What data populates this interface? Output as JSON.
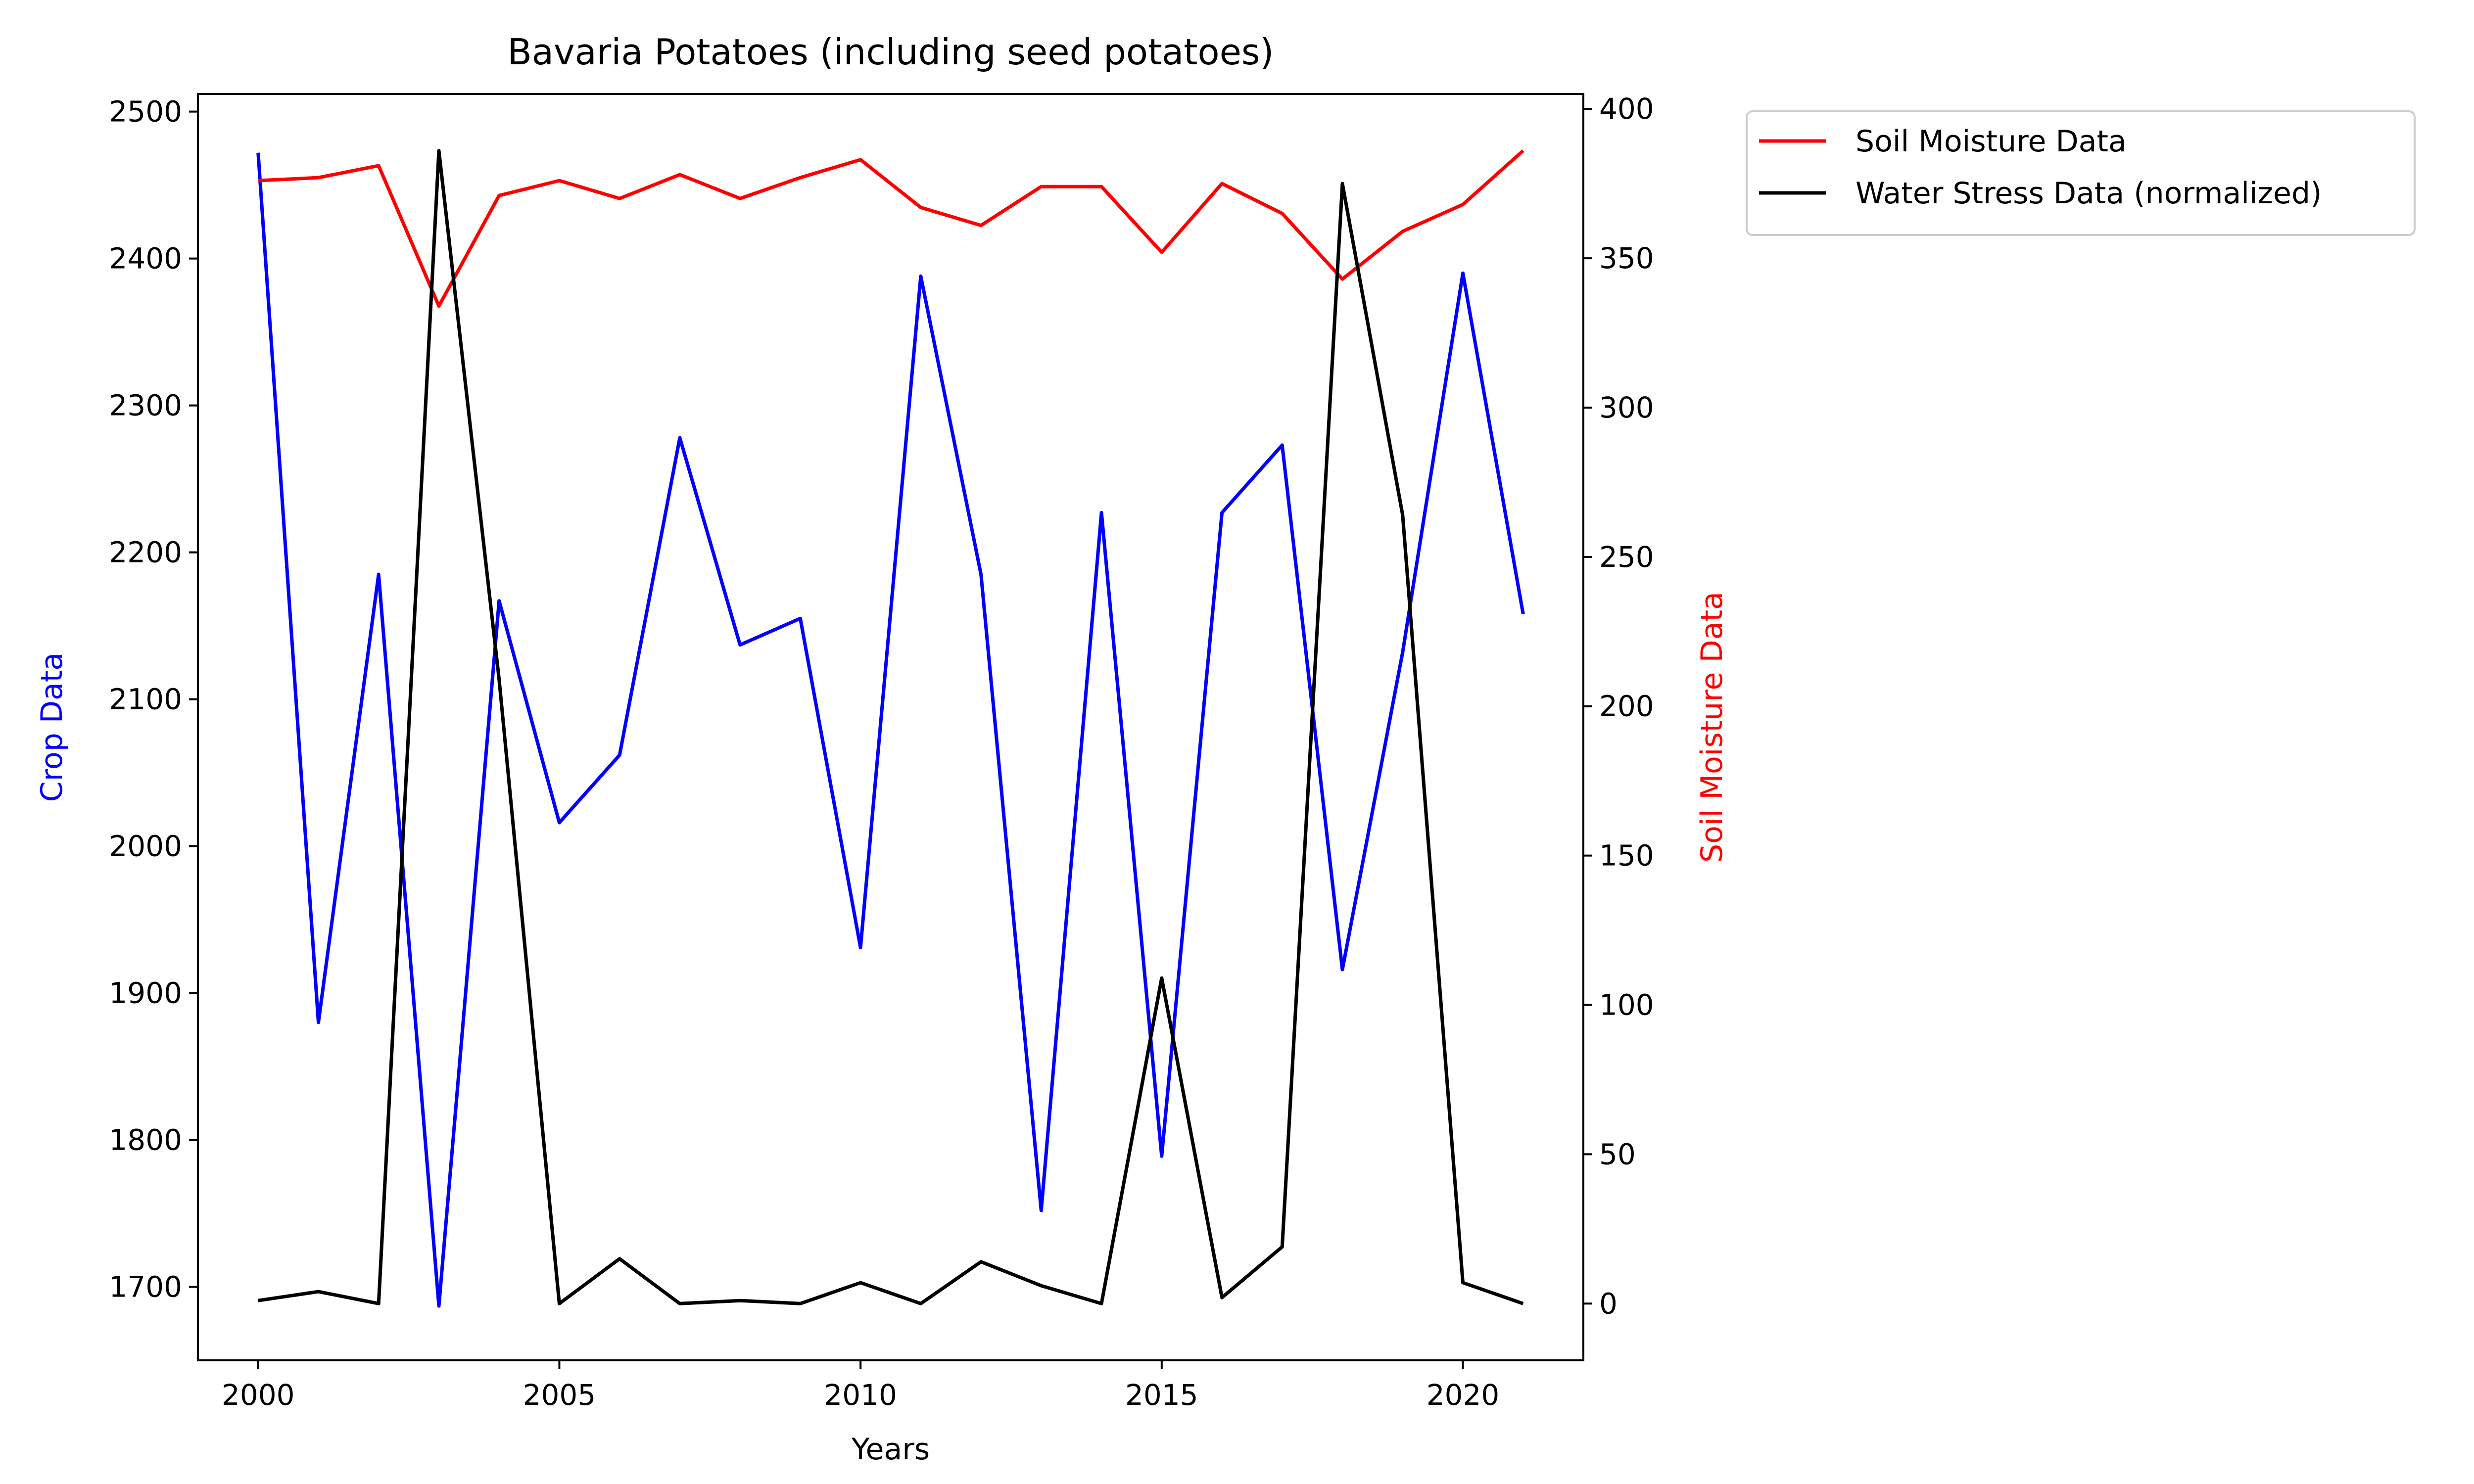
{
  "chart_data": {
    "type": "line",
    "title": "Bavaria Potatoes (including seed potatoes)",
    "xlabel": "Years",
    "ylabel_left": "Crop Data",
    "ylabel_right": "Soil Moisture Data",
    "xlim": [
      1999,
      2022
    ],
    "x_ticks": [
      2000,
      2005,
      2010,
      2015,
      2020
    ],
    "ylim_left": [
      1650,
      2512
    ],
    "y_ticks_left": [
      1700,
      1800,
      1900,
      2000,
      2100,
      2200,
      2300,
      2400,
      2500
    ],
    "ylim_right": [
      -19,
      405
    ],
    "y_ticks_right": [
      0,
      50,
      100,
      150,
      200,
      250,
      300,
      350,
      400
    ],
    "x": [
      2000,
      2001,
      2002,
      2003,
      2004,
      2005,
      2006,
      2007,
      2008,
      2009,
      2010,
      2011,
      2012,
      2013,
      2014,
      2015,
      2016,
      2017,
      2018,
      2019,
      2020,
      2021
    ],
    "series": [
      {
        "name": "",
        "axis": "left",
        "color": "#0000ff",
        "values": [
          2472,
          1880,
          2185,
          1687,
          2167,
          2016,
          2062,
          2278,
          2137,
          2155,
          1931,
          2388,
          2185,
          1752,
          2227,
          1789,
          2227,
          2273,
          1916,
          2132,
          2390,
          2158
        ]
      },
      {
        "name": "Soil Moisture Data",
        "axis": "right",
        "color": "#ff0000",
        "values": [
          376,
          377,
          381,
          334,
          371,
          376,
          370,
          378,
          370,
          377,
          383,
          367,
          361,
          374,
          374,
          352,
          375,
          365,
          343,
          359,
          368,
          386
        ]
      },
      {
        "name": "Water Stress Data (normalized)",
        "axis": "right",
        "color": "#000000",
        "values": [
          1,
          4,
          0,
          386,
          209,
          0,
          15,
          0,
          1,
          0,
          7,
          0,
          14,
          6,
          0,
          109,
          2,
          19,
          375,
          264,
          7,
          0
        ]
      }
    ],
    "legend_position": "outside upper right",
    "grid": false
  }
}
